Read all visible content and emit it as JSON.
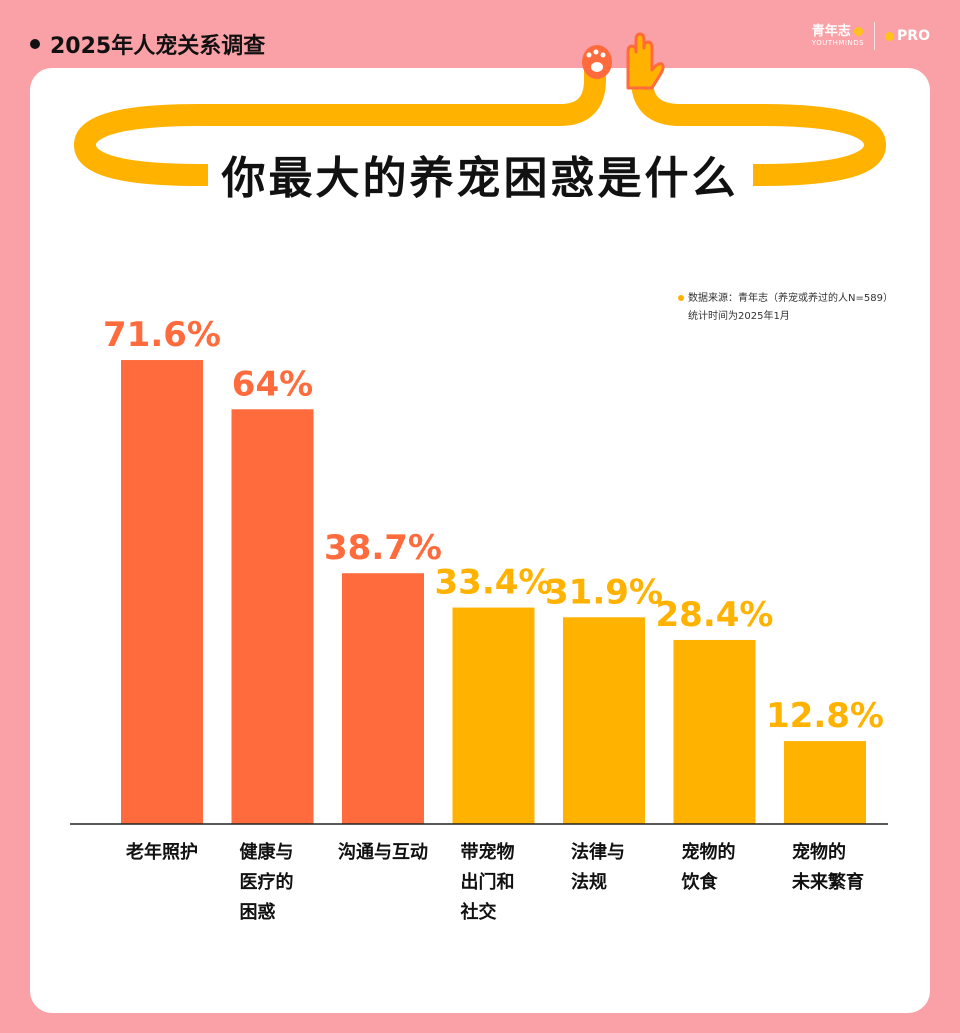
{
  "header": {
    "title": "2025年人宠关系调查"
  },
  "brand": {
    "name": "青年志",
    "sub": "YOUTHMINDS",
    "pro": "PRO"
  },
  "source": {
    "line1": "数据来源：青年志（养宠或养过的人N=589）",
    "line2": "统计时间为2025年1月"
  },
  "colors": {
    "background": "#f9a1a6",
    "accent_red": "#ff6b3d",
    "accent_yellow": "#ffb300",
    "card": "#ffffff"
  },
  "chart_data": {
    "type": "bar",
    "title": "你最大的养宠困惑是什么",
    "categories": [
      "老年照护",
      "健康与医疗的困惑",
      "沟通与互动",
      "带宠物出门和社交",
      "法律与法规",
      "宠物的饮食",
      "宠物的未来繁育"
    ],
    "category_lines": [
      [
        "老年照护"
      ],
      [
        "健康与",
        "医疗的",
        "困惑"
      ],
      [
        "沟通与互动"
      ],
      [
        "带宠物",
        "出门和",
        "社交"
      ],
      [
        "法律与",
        "法规"
      ],
      [
        "宠物的",
        "饮食"
      ],
      [
        "宠物的",
        "未来繁育"
      ]
    ],
    "values": [
      71.6,
      64,
      38.7,
      33.4,
      31.9,
      28.4,
      12.8
    ],
    "value_labels": [
      "71.6%",
      "64%",
      "38.7%",
      "33.4%",
      "31.9%",
      "28.4%",
      "12.8%"
    ],
    "bar_colors": [
      "#ff6b3d",
      "#ff6b3d",
      "#ff6b3d",
      "#ffb300",
      "#ffb300",
      "#ffb300",
      "#ffb300"
    ],
    "ylim": [
      0,
      100
    ],
    "grid": false,
    "xlabel": "",
    "ylabel": ""
  }
}
